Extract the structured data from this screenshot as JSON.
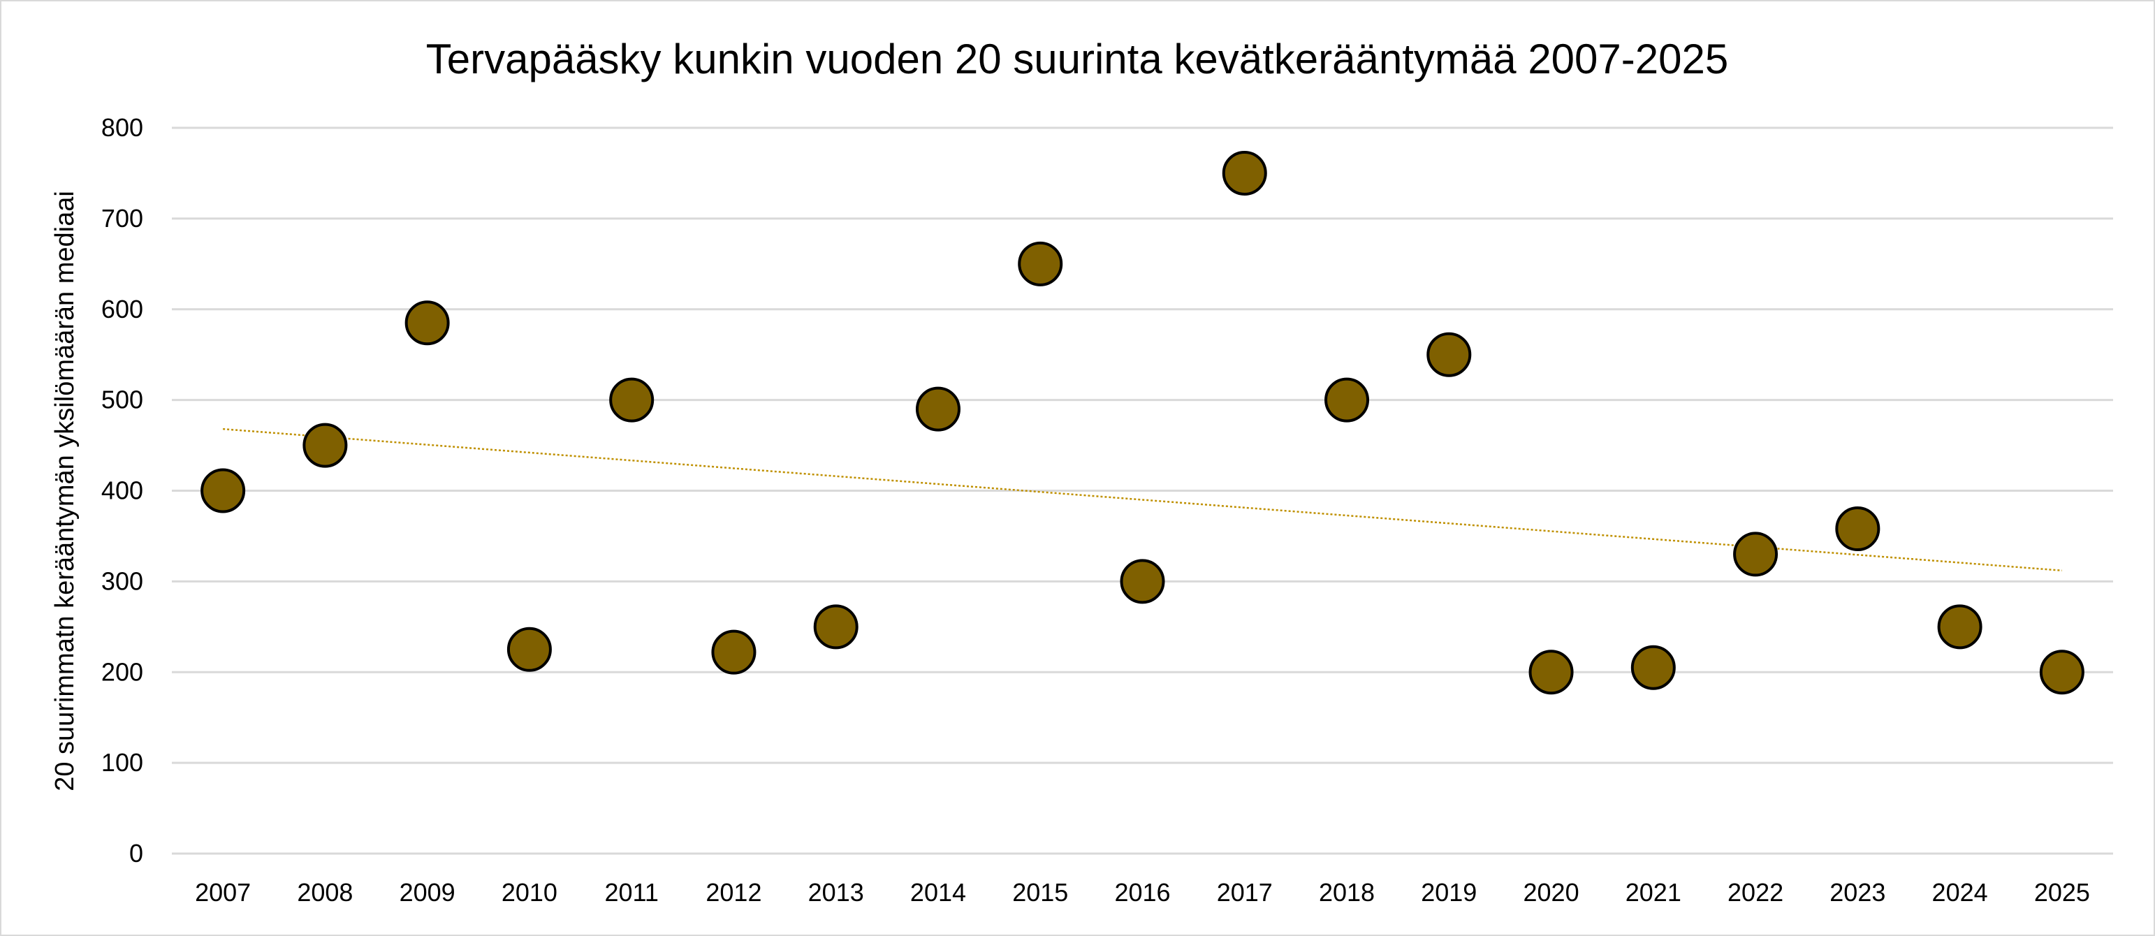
{
  "chart_data": {
    "type": "scatter",
    "title": "Tervapääsky kunkin vuoden 20 suurinta kevätkerääntymää 2007-2025",
    "xlabel": "",
    "ylabel": "20 suurimmatn kerääntymän yksilömäärän mediaai",
    "categories": [
      "2007",
      "2008",
      "2009",
      "2010",
      "2011",
      "2012",
      "2013",
      "2014",
      "2015",
      "2016",
      "2017",
      "2018",
      "2019",
      "2020",
      "2021",
      "2022",
      "2023",
      "2024",
      "2025"
    ],
    "values": [
      400,
      450,
      585,
      225,
      500,
      222,
      250,
      490,
      650,
      300,
      750,
      500,
      550,
      200,
      205,
      330,
      358,
      250,
      200
    ],
    "ylim": [
      0,
      800
    ],
    "yticks": [
      "0",
      "100",
      "200",
      "300",
      "400",
      "500",
      "600",
      "700",
      "800"
    ],
    "grid": true,
    "legend": "none",
    "trendline": {
      "type": "linear",
      "start": 468,
      "end": 312
    },
    "colors": {
      "marker": "#7F6000",
      "marker_edge": "#000000",
      "trend": "#BF9000",
      "grid": "#d9d9d9"
    }
  }
}
